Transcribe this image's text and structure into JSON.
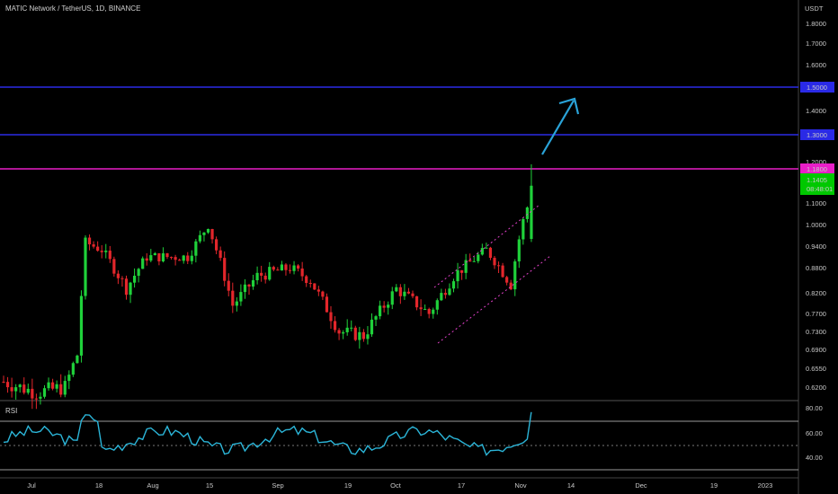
{
  "header": {
    "title": "MATIC Network / TetherUS, 1D, BINANCE",
    "unit": "USDT"
  },
  "rsi": {
    "label": "RSI",
    "ticks": [
      "80.00",
      "60.00",
      "40.00"
    ]
  },
  "chart_data": {
    "type": "candlestick",
    "y_ticks": [
      "1.8000",
      "1.7000",
      "1.6000",
      "1.5000",
      "1.4000",
      "1.3000",
      "1.2000",
      "1.1800",
      "1.1000",
      "1.0000",
      "0.9400",
      "0.8800",
      "0.8200",
      "0.7700",
      "0.7300",
      "0.6900",
      "0.6550",
      "0.6200"
    ],
    "x_ticks": [
      "Jul",
      "18",
      "Aug",
      "15",
      "Sep",
      "19",
      "Oct",
      "17",
      "Nov",
      "14",
      "Dec",
      "19",
      "2023"
    ],
    "levels": [
      {
        "label": "1.5000",
        "value": 1.5,
        "color": "#2a2ae6"
      },
      {
        "label": "1.3000",
        "value": 1.3,
        "color": "#2a2ae6"
      },
      {
        "label": "1.1800",
        "value": 1.18,
        "color": "#e91ec8"
      }
    ],
    "price_label": {
      "value": "1.1405",
      "sub": "08:48:01",
      "color": "#00c800"
    },
    "candle_count": 130,
    "last_close": 1.1405,
    "annotation": "arrow-up"
  }
}
